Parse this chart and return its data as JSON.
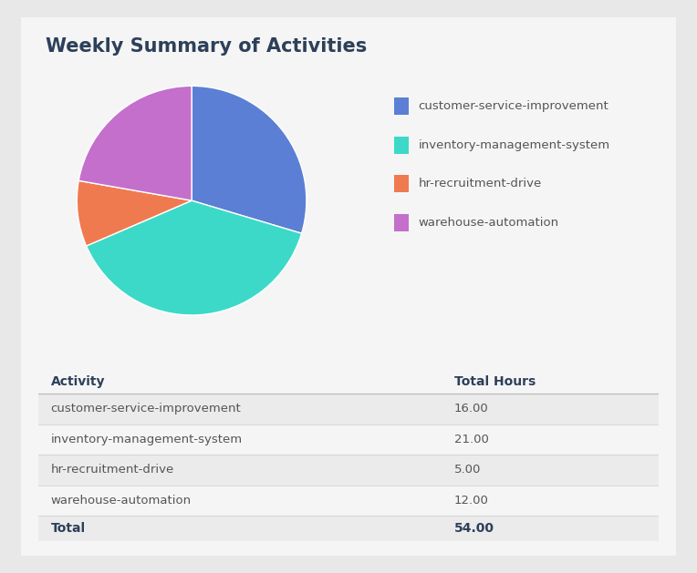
{
  "title": "Weekly Summary of Activities",
  "activities": [
    "customer-service-improvement",
    "inventory-management-system",
    "hr-recruitment-drive",
    "warehouse-automation"
  ],
  "hours": [
    16.0,
    21.0,
    5.0,
    12.0
  ],
  "total": 54.0,
  "colors": [
    "#5b7fd4",
    "#3dd9c8",
    "#f07a50",
    "#c46fcc"
  ],
  "col_activity": "Activity",
  "col_hours": "Total Hours",
  "background_color": "#e8e8e8",
  "card_color": "#f5f5f5",
  "table_row_alt": "#ebebeb",
  "table_row_white": "#f5f5f5",
  "title_color": "#2d4059",
  "text_color": "#555555",
  "legend_fontsize": 9.5,
  "title_fontsize": 15,
  "table_header_fontsize": 10,
  "table_fontsize": 9.5
}
